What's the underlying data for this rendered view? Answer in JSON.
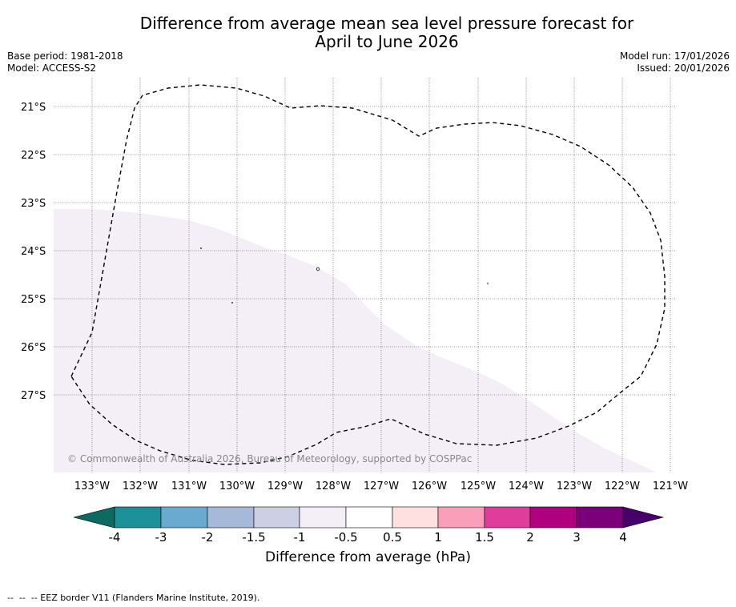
{
  "title_line1": "Difference from average mean sea level pressure forecast for",
  "title_line2": "April to June 2026",
  "base_period": "Base period: 1981-2018",
  "model": "Model: ACCESS-S2",
  "model_run": "Model run: 17/01/2026",
  "issued": "Issued: 20/01/2026",
  "copyright": "© Commonwealth of Australia 2026, Bureau of Meteorology, supported by COSPPac",
  "lat_labels": [
    "21°S",
    "22°S",
    "23°S",
    "24°S",
    "25°S",
    "26°S",
    "27°S"
  ],
  "lon_labels": [
    "133°W",
    "132°W",
    "131°W",
    "130°W",
    "129°W",
    "128°W",
    "127°W",
    "126°W",
    "125°W",
    "124°W",
    "123°W",
    "122°W",
    "121°W"
  ],
  "colorbar": {
    "title": "Difference from average (hPa)",
    "tick_labels": [
      "-4",
      "-3",
      "-2",
      "-1.5",
      "-1",
      "-0.5",
      "0.5",
      "1",
      "1.5",
      "2",
      "3",
      "4"
    ],
    "colors": [
      "#0b6b63",
      "#1e9099",
      "#6aaad0",
      "#a7b9d8",
      "#cdd0e4",
      "#f4eef6",
      "#ffffff",
      "#fde0df",
      "#f99fba",
      "#df3c9b",
      "#b1007f",
      "#7b007a",
      "#48006a"
    ]
  },
  "field_color": "#f4eef6",
  "footer": "--  --  -- EEZ border V11 (Flanders Marine Institute, 2019)."
}
